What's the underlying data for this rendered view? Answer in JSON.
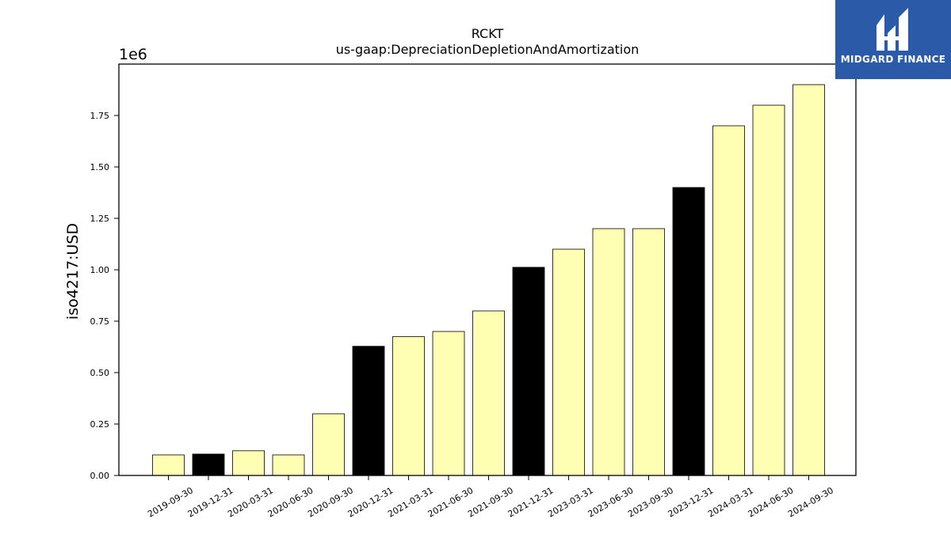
{
  "brand": {
    "name": "MIDGARD FINANCE",
    "background": "#2a5aa8",
    "icon": "midgard-logo-icon"
  },
  "chart_data": {
    "type": "bar",
    "title": "RCKT",
    "subtitle": "us-gaap:DepreciationDepletionAndAmortization",
    "xlabel": "",
    "ylabel": "iso4217:USD",
    "y_scale_label": "1e6",
    "ylim": [
      0,
      2000000
    ],
    "y_ticks": [
      0,
      250000,
      500000,
      750000,
      1000000,
      1250000,
      1500000,
      1750000
    ],
    "y_tick_labels": [
      "0.00",
      "0.25",
      "0.50",
      "0.75",
      "1.00",
      "1.25",
      "1.50",
      "1.75"
    ],
    "grid": false,
    "categories": [
      "2019-09-30",
      "2019-12-31",
      "2020-03-31",
      "2020-06-30",
      "2020-09-30",
      "2020-12-31",
      "2021-03-31",
      "2021-06-30",
      "2021-09-30",
      "2021-12-31",
      "2023-03-31",
      "2023-06-30",
      "2023-09-30",
      "2023-12-31",
      "2024-03-31",
      "2024-06-30",
      "2024-09-30"
    ],
    "values": [
      100000,
      104000,
      120000,
      100000,
      300000,
      628000,
      675000,
      700000,
      800000,
      1012000,
      1100000,
      1200000,
      1200000,
      1400000,
      1700000,
      1800000,
      1900000
    ],
    "bar_colors": [
      "#ffffb3",
      "#000000",
      "#ffffb3",
      "#ffffb3",
      "#ffffb3",
      "#000000",
      "#ffffb3",
      "#ffffb3",
      "#ffffb3",
      "#000000",
      "#ffffb3",
      "#ffffb3",
      "#ffffb3",
      "#000000",
      "#ffffb3",
      "#ffffb3",
      "#ffffb3"
    ],
    "colors": {
      "quarter": "#ffffb3",
      "year_end": "#000000",
      "edge": "#000000"
    }
  }
}
